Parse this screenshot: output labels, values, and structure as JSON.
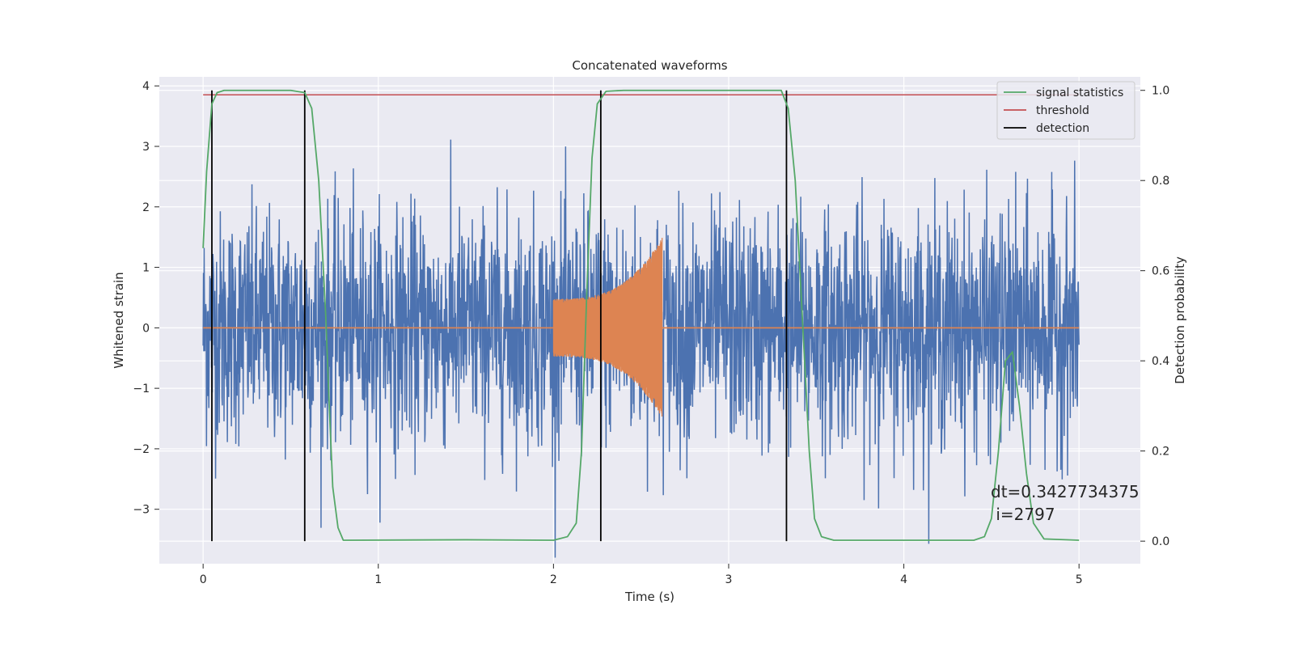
{
  "chart_data": {
    "type": "line",
    "title": "Concatenated waveforms",
    "xlabel": "Time (s)",
    "ylabel": "Whitened strain",
    "ylabel_right": "Detection probability",
    "xlim": [
      -0.25,
      5.35
    ],
    "ylim": [
      -3.9,
      4.15
    ],
    "ylim_right": [
      -0.05,
      1.03
    ],
    "xticks": [
      0,
      1,
      2,
      3,
      4,
      5
    ],
    "xtick_labels": [
      "0",
      "1",
      "2",
      "3",
      "4",
      "5"
    ],
    "yticks": [
      -3,
      -2,
      -1,
      0,
      1,
      2,
      3,
      4
    ],
    "ytick_labels": [
      "−3",
      "−2",
      "−1",
      "0",
      "1",
      "2",
      "3",
      "4"
    ],
    "yticks_right": [
      0.0,
      0.2,
      0.4,
      0.6,
      0.8,
      1.0
    ],
    "ytick_labels_right": [
      "0.0",
      "0.2",
      "0.4",
      "0.6",
      "0.8",
      "1.0"
    ],
    "grid": true,
    "legend_position": "top-right",
    "series": [
      {
        "name": "",
        "kind": "noise-strain",
        "color": "#4c72b0",
        "x_range": [
          0,
          5
        ],
        "typical_amplitude": 2.2,
        "peak_amplitude": 3.8
      },
      {
        "name": "",
        "kind": "chirp-waveform",
        "color": "#dd8452",
        "x_range": [
          0,
          5
        ],
        "chirp_start": 2.0,
        "chirp_end": 2.62,
        "start_amplitude": 0.48,
        "end_amplitude": 1.5
      },
      {
        "name": "signal statistics",
        "axis": "right",
        "color": "#55a868",
        "x": [
          0.0,
          0.02,
          0.05,
          0.08,
          0.12,
          0.2,
          0.5,
          0.58,
          0.62,
          0.66,
          0.7,
          0.72,
          0.74,
          0.77,
          0.8,
          1.5,
          2.0,
          2.08,
          2.13,
          2.16,
          2.19,
          2.22,
          2.25,
          2.3,
          2.4,
          3.3,
          3.34,
          3.38,
          3.42,
          3.46,
          3.49,
          3.53,
          3.6,
          4.4,
          4.46,
          4.5,
          4.54,
          4.58,
          4.62,
          4.66,
          4.7,
          4.74,
          4.8,
          5.0
        ],
        "y": [
          0.65,
          0.82,
          0.97,
          0.995,
          1.0,
          1.0,
          1.0,
          0.995,
          0.96,
          0.8,
          0.5,
          0.3,
          0.12,
          0.03,
          0.002,
          0.003,
          0.002,
          0.01,
          0.04,
          0.2,
          0.55,
          0.85,
          0.97,
          0.998,
          1.0,
          1.0,
          0.96,
          0.8,
          0.5,
          0.2,
          0.05,
          0.01,
          0.002,
          0.002,
          0.01,
          0.05,
          0.2,
          0.4,
          0.42,
          0.3,
          0.15,
          0.04,
          0.005,
          0.002
        ]
      },
      {
        "name": "threshold",
        "axis": "right",
        "color": "#c44e52",
        "x": [
          0,
          5
        ],
        "y": [
          0.99,
          0.99
        ]
      }
    ],
    "detections": {
      "name": "detection",
      "color": "#000000",
      "x": [
        0.05,
        0.58,
        2.27,
        3.33
      ],
      "y_range": [
        0.0,
        1.0
      ]
    },
    "annotation": "dt=0.3427734375\n i=2797"
  }
}
